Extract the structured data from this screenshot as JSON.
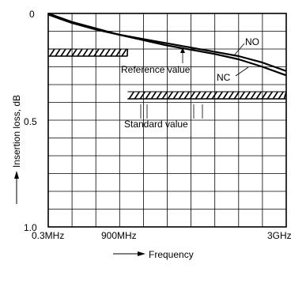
{
  "chart_data": {
    "type": "line",
    "xlabel": "Frequency",
    "ylabel": "Insertion loss, dB",
    "x_tick_labels": [
      "0.3MHz",
      "900MHz",
      "3GHz"
    ],
    "y_ticks": [
      0,
      0.5,
      1.0
    ],
    "y_tick_labels": [
      "0",
      "0.5",
      "1.0"
    ],
    "ylim": [
      0,
      1.0
    ],
    "y_inverted": true,
    "grid": true,
    "series": [
      {
        "name": "NO",
        "x_frac": [
          0,
          0.05,
          0.1,
          0.2,
          0.3,
          0.4,
          0.5,
          0.6,
          0.7,
          0.8,
          0.9,
          1.0
        ],
        "values": [
          0.0,
          0.02,
          0.04,
          0.07,
          0.1,
          0.12,
          0.14,
          0.16,
          0.18,
          0.2,
          0.23,
          0.27
        ]
      },
      {
        "name": "NC",
        "x_frac": [
          0,
          0.05,
          0.1,
          0.2,
          0.3,
          0.4,
          0.5,
          0.6,
          0.7,
          0.8,
          0.9,
          1.0
        ],
        "values": [
          0.005,
          0.025,
          0.045,
          0.075,
          0.1,
          0.125,
          0.15,
          0.17,
          0.19,
          0.215,
          0.25,
          0.29
        ]
      }
    ],
    "reference_value": {
      "label": "Reference value",
      "segments": [
        {
          "x_start_frac": 0.0,
          "x_end_frac": 0.3333,
          "value": 0.2
        },
        {
          "x_start_frac": 0.3333,
          "x_end_frac": 1.0,
          "value": 0.4
        }
      ]
    },
    "standard_value": {
      "label": "Standard value",
      "segments": [
        {
          "x_start_frac": 0.0,
          "x_end_frac": 0.3333,
          "value": 0.2
        },
        {
          "x_start_frac": 0.3333,
          "x_end_frac": 1.0,
          "value": 0.4
        }
      ]
    },
    "annotations": [
      "NO",
      "NC",
      "Reference value",
      "Standard value"
    ]
  }
}
